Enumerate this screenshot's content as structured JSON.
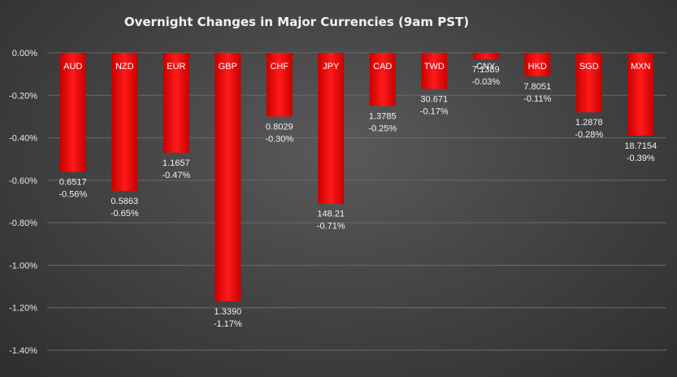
{
  "chart_data": {
    "type": "bar",
    "title": "Overnight Changes in Major Currencies (9am PST)",
    "categories": [
      "AUD",
      "NZD",
      "EUR",
      "GBP",
      "CHF",
      "JPY",
      "CAD",
      "TWD",
      "CNY",
      "HKD",
      "SGD",
      "MXN"
    ],
    "values": [
      -0.56,
      -0.65,
      -0.47,
      -1.17,
      -0.3,
      -0.71,
      -0.25,
      -0.17,
      -0.03,
      -0.11,
      -0.28,
      -0.39
    ],
    "rates": [
      "0.6517",
      "0.5863",
      "1.1657",
      "1.3390",
      "0.8029",
      "148.21",
      "1.3785",
      "30.671",
      "7.1389",
      "7.8051",
      "1.2878",
      "18.7154"
    ],
    "value_labels": [
      "-0.56%",
      "-0.65%",
      "-0.47%",
      "-1.17%",
      "-0.30%",
      "-0.71%",
      "-0.25%",
      "-0.17%",
      "-0.03%",
      "-0.11%",
      "-0.28%",
      "-0.39%"
    ],
    "y_ticks": [
      "0.00%",
      "-0.20%",
      "-0.40%",
      "-0.60%",
      "-0.80%",
      "-1.00%",
      "-1.20%",
      "-1.40%"
    ],
    "ylim": [
      -1.4,
      0
    ],
    "xlabel": "",
    "ylabel": "",
    "grid": true,
    "bar_color": "#ff0000",
    "background_color": "#454545"
  }
}
